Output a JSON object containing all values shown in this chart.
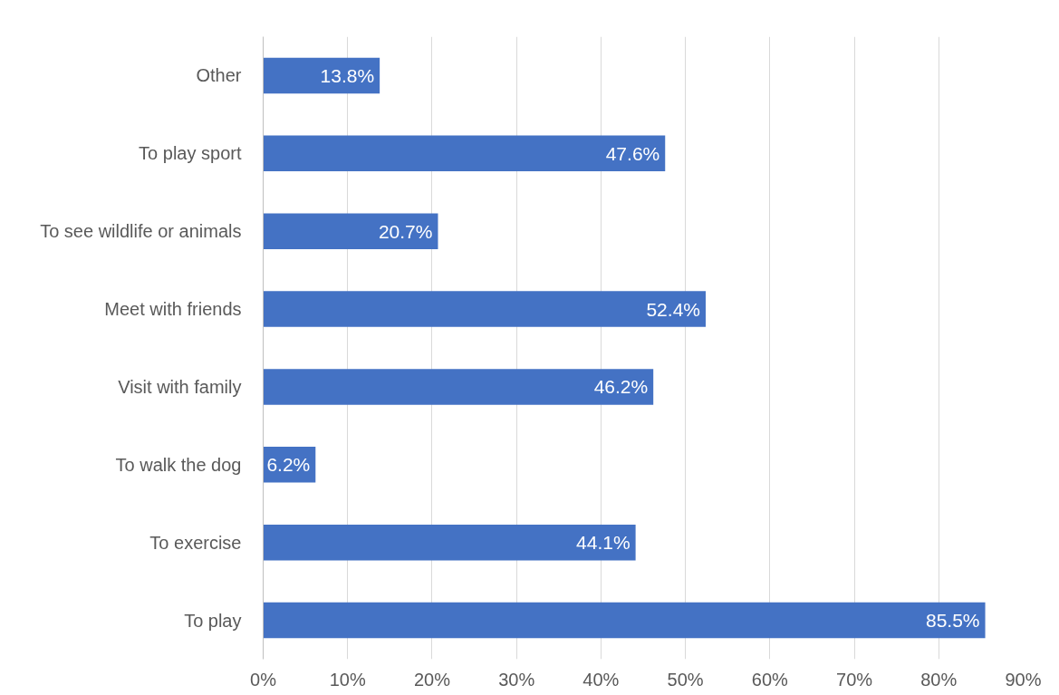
{
  "chart_data": {
    "type": "bar",
    "orientation": "horizontal",
    "categories": [
      "Other",
      "To play sport",
      "To see wildlife or animals",
      "Meet with friends",
      "Visit with family",
      "To walk the dog",
      "To exercise",
      "To play"
    ],
    "values": [
      13.8,
      47.6,
      20.7,
      52.4,
      46.2,
      6.2,
      44.1,
      85.5
    ],
    "value_labels": [
      "13.8%",
      "47.6%",
      "20.7%",
      "52.4%",
      "46.2%",
      "6.2%",
      "44.1%",
      "85.5%"
    ],
    "color": "#4472c4",
    "xlim": [
      0,
      90
    ],
    "xticks": [
      {
        "value": 0,
        "label": "0%"
      },
      {
        "value": 10,
        "label": "10%"
      },
      {
        "value": 20,
        "label": "20%"
      },
      {
        "value": 30,
        "label": "30%"
      },
      {
        "value": 40,
        "label": "40%"
      },
      {
        "value": 50,
        "label": "50%"
      },
      {
        "value": 60,
        "label": "60%"
      },
      {
        "value": 70,
        "label": "70%"
      },
      {
        "value": 80,
        "label": "80%"
      },
      {
        "value": 90,
        "label": "90%"
      }
    ],
    "grid": "x"
  }
}
